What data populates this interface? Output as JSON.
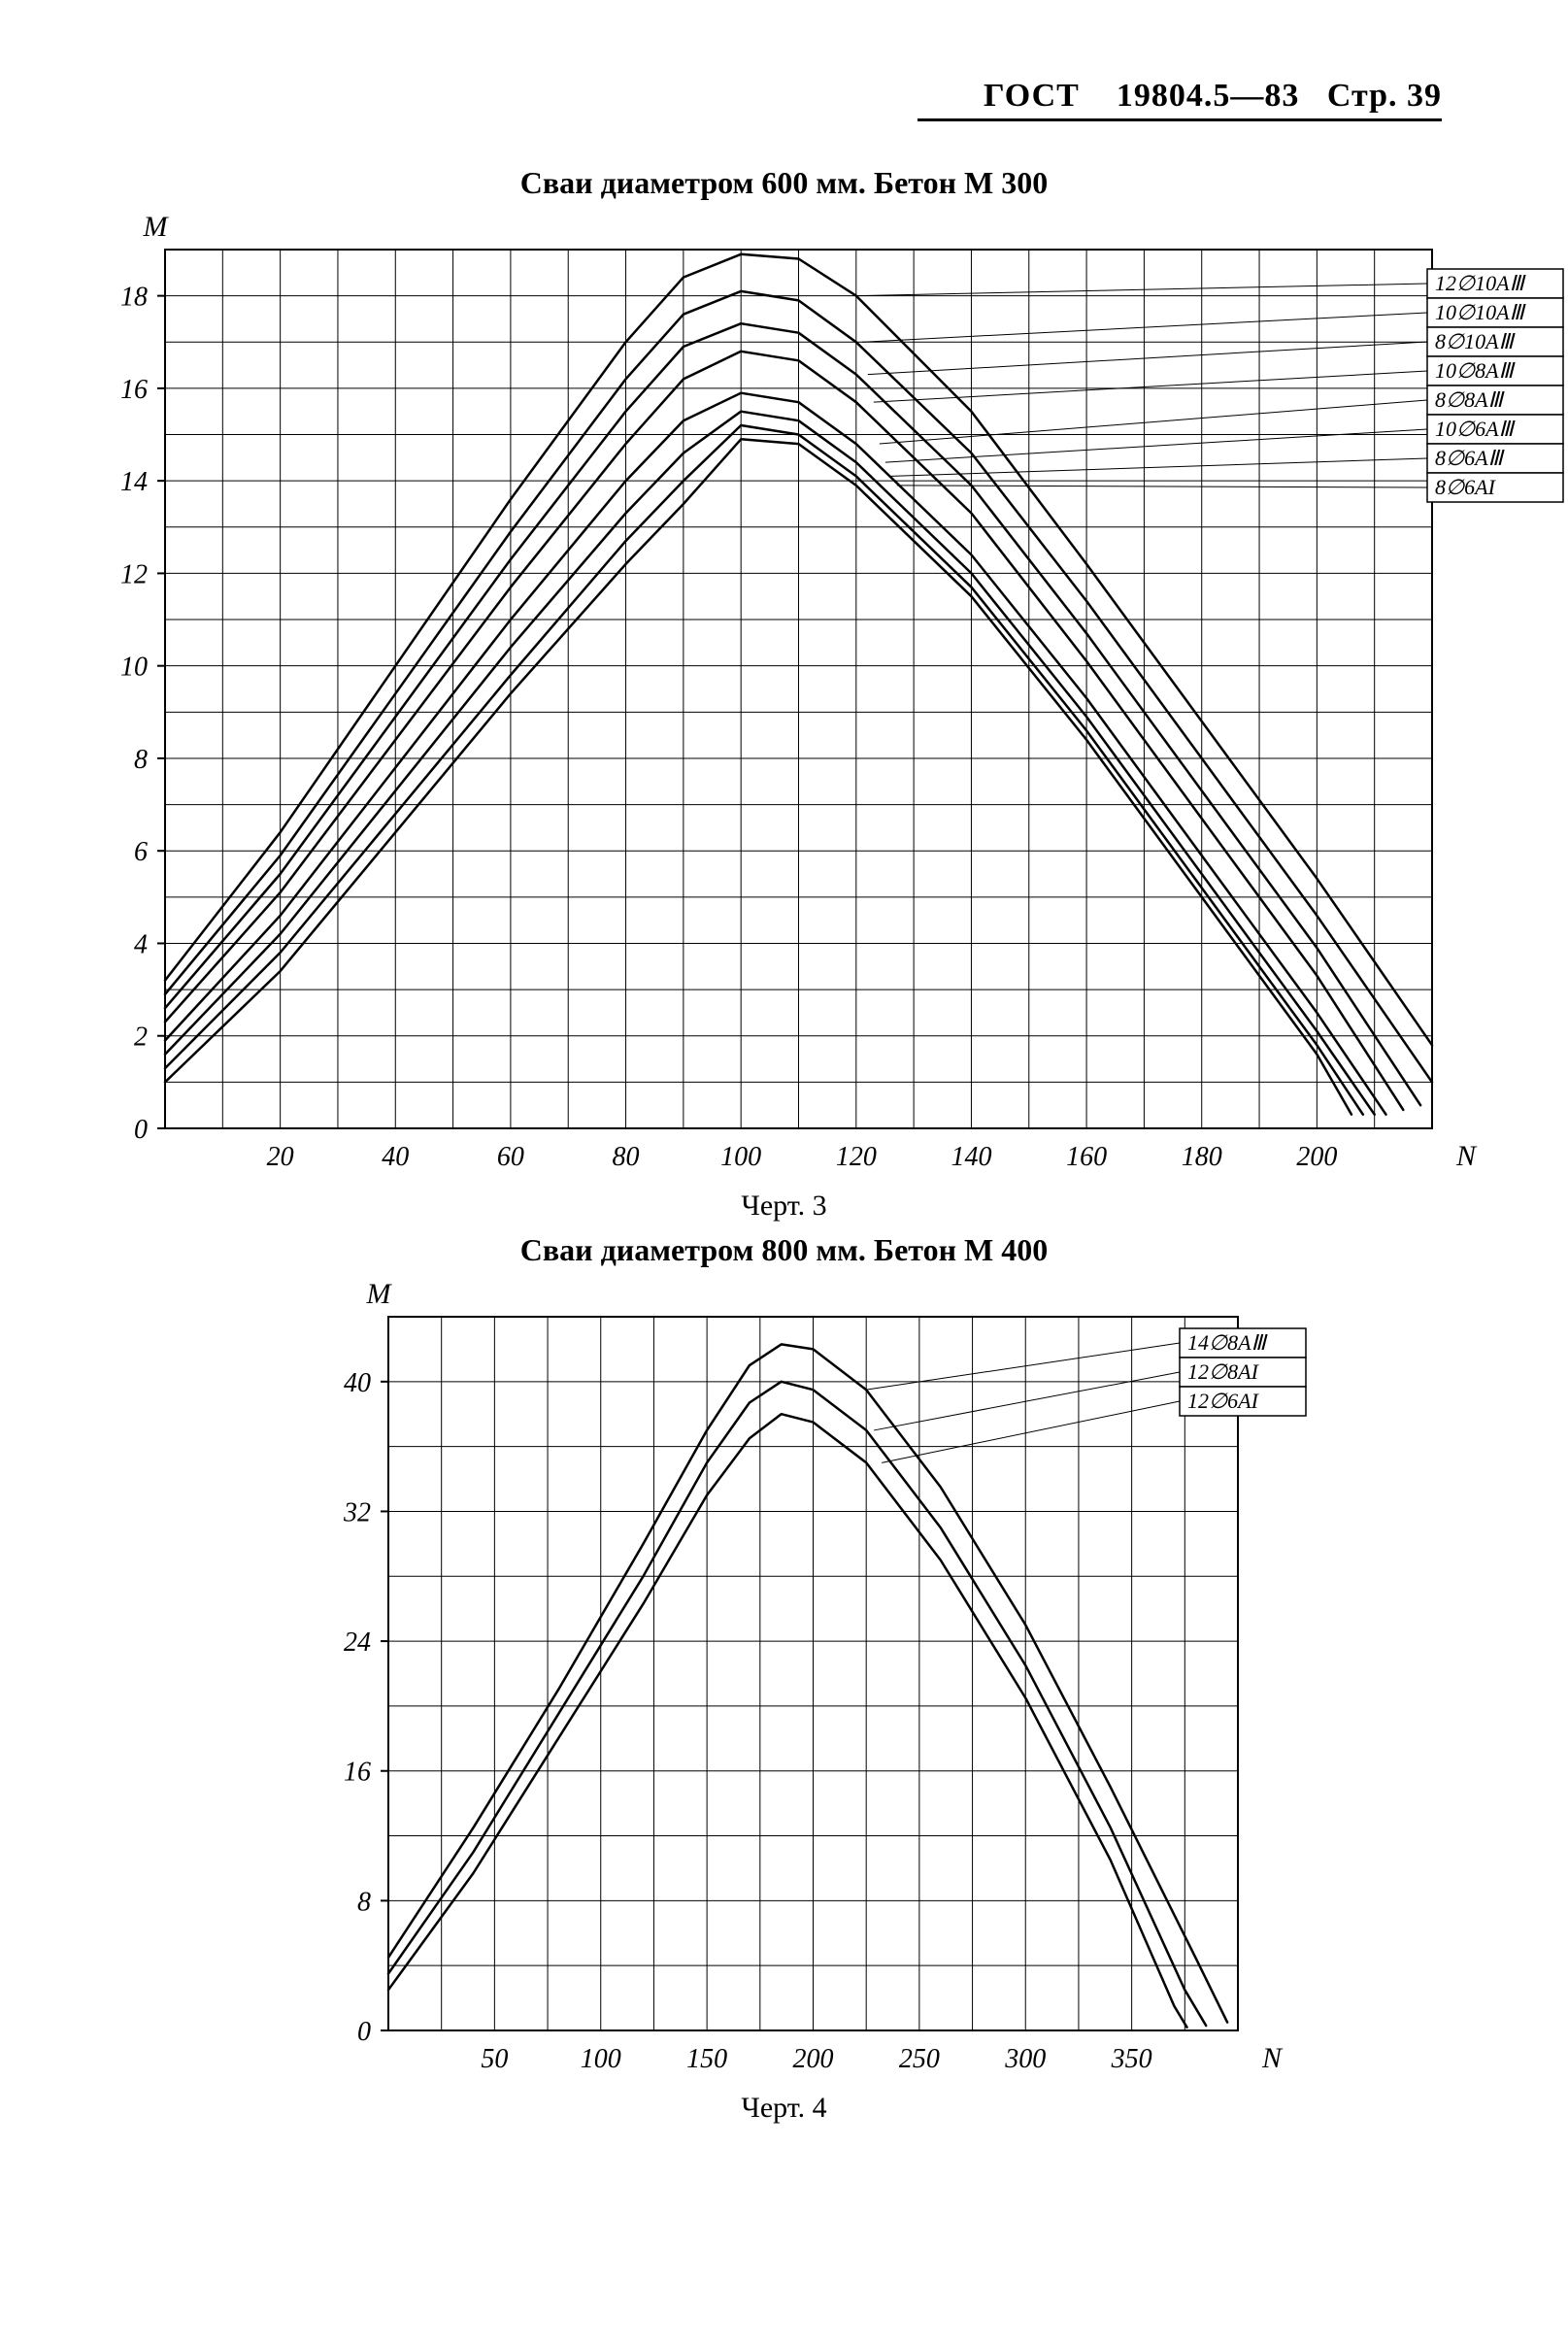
{
  "page_header": {
    "standard": "ГОСТ",
    "number": "19804.5—83",
    "page_label": "Стр. 39"
  },
  "chart1": {
    "type": "line",
    "title": "Сваи диаметром 600 мм. Бетон М 300",
    "caption": "Черт. 3",
    "x_axis": {
      "label": "N",
      "min": 0,
      "max": 220,
      "ticks": [
        20,
        40,
        60,
        80,
        100,
        120,
        140,
        160,
        180,
        200
      ],
      "tick_labels": [
        "20",
        "40",
        "60",
        "80",
        "100",
        "120",
        "140",
        "160",
        "180",
        "200"
      ]
    },
    "y_axis": {
      "label": "M",
      "min": 0,
      "max": 19,
      "ticks": [
        0,
        2,
        4,
        6,
        8,
        10,
        12,
        14,
        16,
        18
      ],
      "tick_labels": [
        "0",
        "2",
        "4",
        "6",
        "8",
        "10",
        "12",
        "14",
        "16",
        "18"
      ]
    },
    "grid_color": "#000000",
    "grid_width": 1,
    "curve_color": "#000000",
    "curve_width": 2.5,
    "background_color": "#ffffff",
    "legend_pos": "top-right",
    "series": [
      {
        "label": "12∅10AⅢ",
        "points": [
          [
            0,
            3.2
          ],
          [
            20,
            6.4
          ],
          [
            40,
            10.0
          ],
          [
            60,
            13.6
          ],
          [
            80,
            17.0
          ],
          [
            90,
            18.4
          ],
          [
            100,
            18.9
          ],
          [
            110,
            18.8
          ],
          [
            120,
            18.0
          ],
          [
            140,
            15.5
          ],
          [
            160,
            12.2
          ],
          [
            180,
            8.8
          ],
          [
            200,
            5.4
          ],
          [
            220,
            1.8
          ]
        ]
      },
      {
        "label": "10∅10AⅢ",
        "points": [
          [
            0,
            2.9
          ],
          [
            20,
            5.9
          ],
          [
            40,
            9.4
          ],
          [
            60,
            12.9
          ],
          [
            80,
            16.2
          ],
          [
            90,
            17.6
          ],
          [
            100,
            18.1
          ],
          [
            110,
            17.9
          ],
          [
            120,
            17.0
          ],
          [
            140,
            14.6
          ],
          [
            160,
            11.4
          ],
          [
            180,
            8.0
          ],
          [
            200,
            4.6
          ],
          [
            220,
            1.0
          ]
        ]
      },
      {
        "label": "8∅10AⅢ",
        "points": [
          [
            0,
            2.6
          ],
          [
            20,
            5.5
          ],
          [
            40,
            8.9
          ],
          [
            60,
            12.3
          ],
          [
            80,
            15.5
          ],
          [
            90,
            16.9
          ],
          [
            100,
            17.4
          ],
          [
            110,
            17.2
          ],
          [
            120,
            16.3
          ],
          [
            140,
            13.9
          ],
          [
            160,
            10.7
          ],
          [
            180,
            7.3
          ],
          [
            200,
            3.9
          ],
          [
            218,
            0.5
          ]
        ]
      },
      {
        "label": "10∅8AⅢ",
        "points": [
          [
            0,
            2.3
          ],
          [
            20,
            5.1
          ],
          [
            40,
            8.4
          ],
          [
            60,
            11.7
          ],
          [
            80,
            14.8
          ],
          [
            90,
            16.2
          ],
          [
            100,
            16.8
          ],
          [
            110,
            16.6
          ],
          [
            120,
            15.7
          ],
          [
            140,
            13.3
          ],
          [
            160,
            10.1
          ],
          [
            180,
            6.7
          ],
          [
            200,
            3.3
          ],
          [
            215,
            0.4
          ]
        ]
      },
      {
        "label": "8∅8AⅢ",
        "points": [
          [
            0,
            1.9
          ],
          [
            20,
            4.6
          ],
          [
            40,
            7.8
          ],
          [
            60,
            11.0
          ],
          [
            80,
            14.0
          ],
          [
            90,
            15.3
          ],
          [
            100,
            15.9
          ],
          [
            110,
            15.7
          ],
          [
            120,
            14.8
          ],
          [
            140,
            12.4
          ],
          [
            160,
            9.3
          ],
          [
            180,
            5.9
          ],
          [
            200,
            2.5
          ],
          [
            212,
            0.3
          ]
        ]
      },
      {
        "label": "10∅6AⅢ",
        "points": [
          [
            0,
            1.6
          ],
          [
            20,
            4.2
          ],
          [
            40,
            7.3
          ],
          [
            60,
            10.4
          ],
          [
            80,
            13.3
          ],
          [
            90,
            14.6
          ],
          [
            100,
            15.5
          ],
          [
            110,
            15.3
          ],
          [
            120,
            14.4
          ],
          [
            140,
            12.0
          ],
          [
            160,
            8.9
          ],
          [
            180,
            5.5
          ],
          [
            200,
            2.1
          ],
          [
            210,
            0.3
          ]
        ]
      },
      {
        "label": "8∅6AⅢ",
        "points": [
          [
            0,
            1.3
          ],
          [
            20,
            3.8
          ],
          [
            40,
            6.8
          ],
          [
            60,
            9.8
          ],
          [
            80,
            12.7
          ],
          [
            90,
            14.0
          ],
          [
            100,
            15.2
          ],
          [
            110,
            15.0
          ],
          [
            120,
            14.1
          ],
          [
            140,
            11.7
          ],
          [
            160,
            8.6
          ],
          [
            180,
            5.2
          ],
          [
            200,
            1.8
          ],
          [
            208,
            0.3
          ]
        ]
      },
      {
        "label": "8∅6AI",
        "points": [
          [
            0,
            1.0
          ],
          [
            20,
            3.4
          ],
          [
            40,
            6.4
          ],
          [
            60,
            9.4
          ],
          [
            80,
            12.2
          ],
          [
            90,
            13.5
          ],
          [
            100,
            14.9
          ],
          [
            110,
            14.8
          ],
          [
            120,
            13.9
          ],
          [
            140,
            11.5
          ],
          [
            160,
            8.4
          ],
          [
            180,
            5.0
          ],
          [
            200,
            1.6
          ],
          [
            206,
            0.3
          ]
        ]
      }
    ]
  },
  "chart2": {
    "type": "line",
    "title": "Сваи диаметром 800 мм. Бетон М 400",
    "caption": "Черт. 4",
    "x_axis": {
      "label": "N",
      "min": 0,
      "max": 400,
      "ticks": [
        50,
        100,
        150,
        200,
        250,
        300,
        350
      ],
      "tick_labels": [
        "50",
        "100",
        "150",
        "200",
        "250",
        "300",
        "350"
      ]
    },
    "y_axis": {
      "label": "M",
      "min": 0,
      "max": 44,
      "ticks": [
        0,
        8,
        16,
        24,
        32,
        40
      ],
      "tick_labels": [
        "0",
        "8",
        "16",
        "24",
        "32",
        "40"
      ]
    },
    "grid_color": "#000000",
    "grid_width": 1,
    "curve_color": "#000000",
    "curve_width": 2.5,
    "background_color": "#ffffff",
    "legend_pos": "top-right",
    "series": [
      {
        "label": "14∅8AⅢ",
        "points": [
          [
            0,
            4.5
          ],
          [
            40,
            12.5
          ],
          [
            80,
            21.0
          ],
          [
            120,
            30.0
          ],
          [
            150,
            37.0
          ],
          [
            170,
            41.0
          ],
          [
            185,
            42.3
          ],
          [
            200,
            42.0
          ],
          [
            225,
            39.5
          ],
          [
            260,
            33.5
          ],
          [
            300,
            25.0
          ],
          [
            340,
            15.0
          ],
          [
            380,
            4.5
          ],
          [
            395,
            0.5
          ]
        ]
      },
      {
        "label": "12∅8AI",
        "points": [
          [
            0,
            3.5
          ],
          [
            40,
            11.0
          ],
          [
            80,
            19.5
          ],
          [
            120,
            28.0
          ],
          [
            150,
            35.0
          ],
          [
            170,
            38.7
          ],
          [
            185,
            40.0
          ],
          [
            200,
            39.5
          ],
          [
            225,
            37.0
          ],
          [
            260,
            31.0
          ],
          [
            300,
            22.5
          ],
          [
            340,
            12.5
          ],
          [
            375,
            2.5
          ],
          [
            385,
            0.3
          ]
        ]
      },
      {
        "label": "12∅6AI",
        "points": [
          [
            0,
            2.5
          ],
          [
            40,
            9.7
          ],
          [
            80,
            18.0
          ],
          [
            120,
            26.3
          ],
          [
            150,
            33.0
          ],
          [
            170,
            36.5
          ],
          [
            185,
            38.0
          ],
          [
            200,
            37.5
          ],
          [
            225,
            35.0
          ],
          [
            260,
            29.0
          ],
          [
            300,
            20.5
          ],
          [
            340,
            10.5
          ],
          [
            370,
            1.5
          ],
          [
            376,
            0.2
          ]
        ]
      }
    ]
  }
}
